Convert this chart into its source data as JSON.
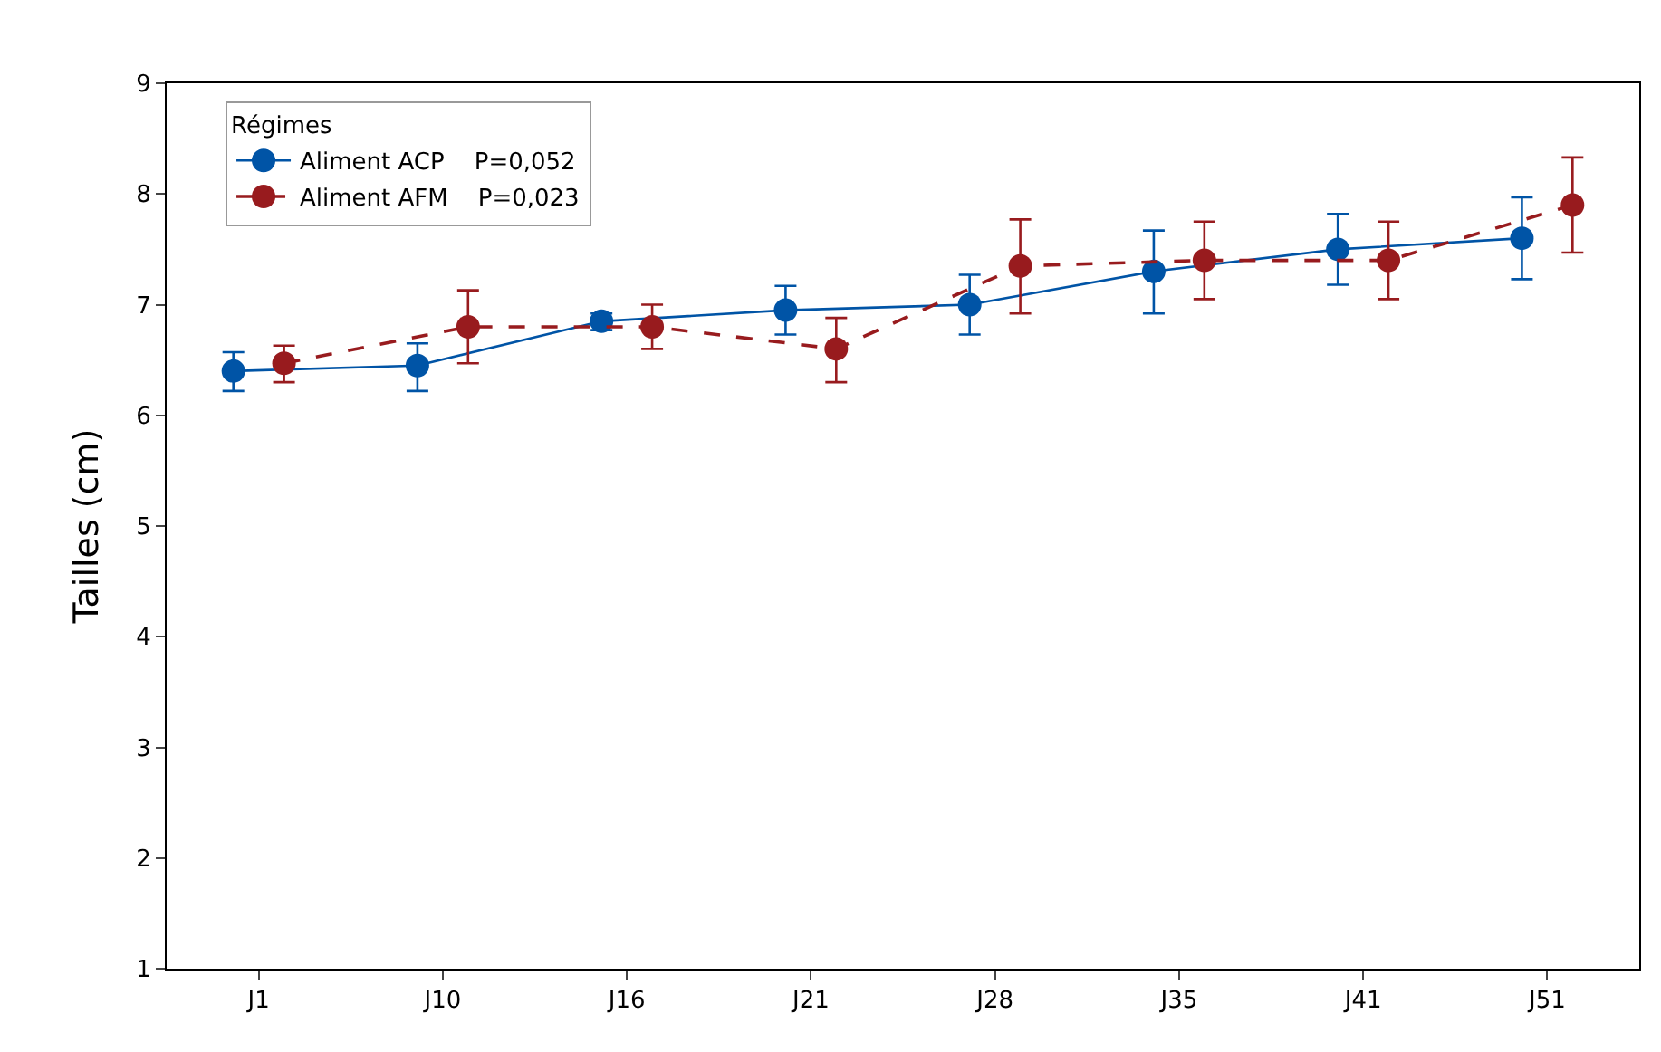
{
  "chart_data": {
    "type": "line",
    "ylabel": "Tailles (cm)",
    "legend_title": "Régimes",
    "legend": "top left",
    "grid": false,
    "marker": "circle",
    "categories": [
      "J1",
      "J10",
      "J16",
      "J21",
      "J28",
      "J35",
      "J41",
      "J51"
    ],
    "ylim": [
      1,
      9
    ],
    "yticks": [
      1,
      2,
      3,
      4,
      5,
      6,
      7,
      8,
      9
    ],
    "series": [
      {
        "name": "Aliment ACP    P=0,052",
        "color": "#0054a6",
        "line_style": "solid",
        "values": [
          6.4,
          6.45,
          6.85,
          6.95,
          7.0,
          7.3,
          7.5,
          7.6
        ],
        "errors": [
          [
            6.22,
            6.57
          ],
          [
            6.22,
            6.65
          ],
          [
            6.77,
            6.92
          ],
          [
            6.73,
            7.17
          ],
          [
            6.73,
            7.27
          ],
          [
            6.92,
            7.67
          ],
          [
            7.18,
            7.82
          ],
          [
            7.23,
            7.97
          ]
        ]
      },
      {
        "name": "Aliment AFM    P=0,023",
        "color": "#981b1e",
        "line_style": "dashed",
        "values": [
          6.47,
          6.8,
          6.8,
          6.6,
          7.35,
          7.4,
          7.4,
          7.9
        ],
        "errors": [
          [
            6.3,
            6.63
          ],
          [
            6.47,
            7.13
          ],
          [
            6.6,
            7.0
          ],
          [
            6.3,
            6.88
          ],
          [
            6.92,
            7.77
          ],
          [
            7.05,
            7.75
          ],
          [
            7.05,
            7.75
          ],
          [
            7.47,
            8.33
          ]
        ]
      }
    ]
  }
}
